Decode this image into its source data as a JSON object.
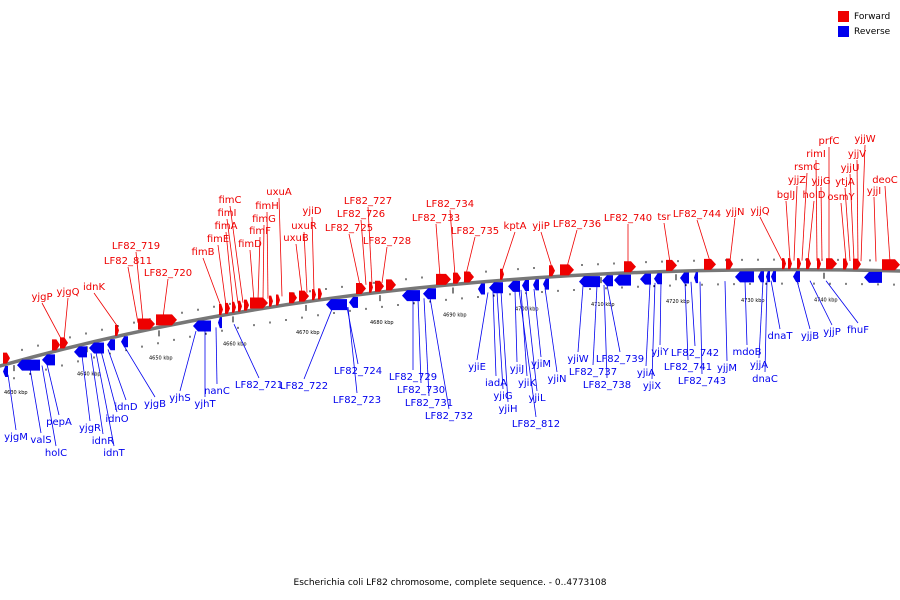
{
  "caption": "Escherichia coli LF82 chromosome, complete sequence. - 0..4773108",
  "legend": {
    "forward": {
      "label": "Forward",
      "color": "#ee0000"
    },
    "reverse": {
      "label": "Reverse",
      "color": "#0000ee"
    }
  },
  "colors": {
    "forward": "#ee0000",
    "reverse": "#0000ee",
    "backbone": "#777777",
    "ticks": "#000000"
  },
  "kbp_labels": [
    "4630 kbp",
    "4640 kbp",
    "4650 kbp",
    "4660 kbp",
    "4670 kbp",
    "4680 kbp",
    "4690 kbp",
    "4700 kbp",
    "4710 kbp",
    "4720 kbp",
    "4730 kbp",
    "4740 kbp"
  ],
  "forward_genes": [
    {
      "name": "yjgP"
    },
    {
      "name": "yjgQ"
    },
    {
      "name": "idnK"
    },
    {
      "name": "LF82_719"
    },
    {
      "name": "LF82_811"
    },
    {
      "name": "LF82_720"
    },
    {
      "name": "fimB"
    },
    {
      "name": "fimE"
    },
    {
      "name": "fimA"
    },
    {
      "name": "fimI"
    },
    {
      "name": "fimC"
    },
    {
      "name": "fimD"
    },
    {
      "name": "fimF"
    },
    {
      "name": "fimG"
    },
    {
      "name": "fimH"
    },
    {
      "name": "uxuA"
    },
    {
      "name": "uxuB"
    },
    {
      "name": "uxuR"
    },
    {
      "name": "yjiD"
    },
    {
      "name": "LF82_725"
    },
    {
      "name": "LF82_726"
    },
    {
      "name": "LF82_727"
    },
    {
      "name": "LF82_728"
    },
    {
      "name": "LF82_733"
    },
    {
      "name": "LF82_734"
    },
    {
      "name": "LF82_735"
    },
    {
      "name": "kptA"
    },
    {
      "name": "yjiP"
    },
    {
      "name": "LF82_736"
    },
    {
      "name": "LF82_740"
    },
    {
      "name": "tsr"
    },
    {
      "name": "LF82_744"
    },
    {
      "name": "yjjN"
    },
    {
      "name": "yjjQ"
    },
    {
      "name": "bglJ"
    },
    {
      "name": "yjjZ"
    },
    {
      "name": "rsmC"
    },
    {
      "name": "holD"
    },
    {
      "name": "rimI"
    },
    {
      "name": "yjjG"
    },
    {
      "name": "prfC"
    },
    {
      "name": "osmY"
    },
    {
      "name": "ytjA"
    },
    {
      "name": "yjjU"
    },
    {
      "name": "yjjV"
    },
    {
      "name": "yjjW"
    },
    {
      "name": "yjjI"
    },
    {
      "name": "deoC"
    }
  ],
  "reverse_genes": [
    {
      "name": "yjgM"
    },
    {
      "name": "valS"
    },
    {
      "name": "holC"
    },
    {
      "name": "pepA"
    },
    {
      "name": "yjgR"
    },
    {
      "name": "idnR"
    },
    {
      "name": "idnT"
    },
    {
      "name": "idnO"
    },
    {
      "name": "idnD"
    },
    {
      "name": "yjgB"
    },
    {
      "name": "yjhS"
    },
    {
      "name": "yjhT"
    },
    {
      "name": "nanC"
    },
    {
      "name": "LF82_721"
    },
    {
      "name": "LF82_722"
    },
    {
      "name": "LF82_724"
    },
    {
      "name": "LF82_723"
    },
    {
      "name": "LF82_729"
    },
    {
      "name": "LF82_730"
    },
    {
      "name": "LF82_731"
    },
    {
      "name": "LF82_732"
    },
    {
      "name": "yjiE"
    },
    {
      "name": "iadA"
    },
    {
      "name": "yjiG"
    },
    {
      "name": "yjiH"
    },
    {
      "name": "yjiJ"
    },
    {
      "name": "yjiK"
    },
    {
      "name": "LF82_812"
    },
    {
      "name": "yjiL"
    },
    {
      "name": "yjiM"
    },
    {
      "name": "yjiN"
    },
    {
      "name": "yjiW"
    },
    {
      "name": "LF82_737"
    },
    {
      "name": "LF82_739"
    },
    {
      "name": "LF82_738"
    },
    {
      "name": "yjiA"
    },
    {
      "name": "yjiX"
    },
    {
      "name": "yjiY"
    },
    {
      "name": "LF82_741"
    },
    {
      "name": "LF82_742"
    },
    {
      "name": "LF82_743"
    },
    {
      "name": "yjjM"
    },
    {
      "name": "mdoB"
    },
    {
      "name": "yjjA"
    },
    {
      "name": "dnaC"
    },
    {
      "name": "dnaT"
    },
    {
      "name": "yjjB"
    },
    {
      "name": "yjjP"
    },
    {
      "name": "fhuF"
    }
  ]
}
